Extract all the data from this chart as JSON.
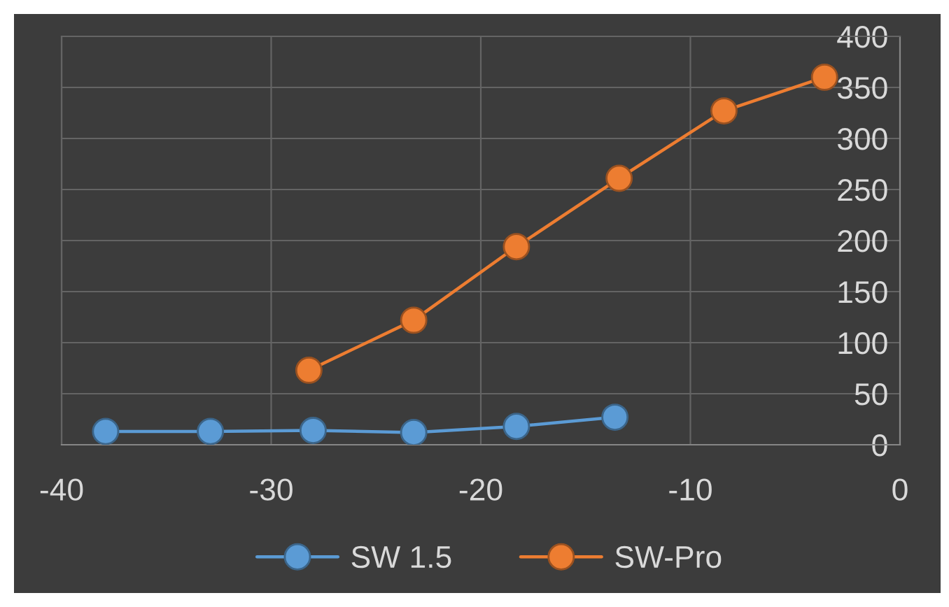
{
  "chart_data": {
    "type": "line",
    "series": [
      {
        "name": "SW 1.5",
        "color": "#5b9bd5",
        "x": [
          -37.9,
          -32.9,
          -28,
          -23.2,
          -18.3,
          -13.6
        ],
        "values": [
          13,
          13,
          14,
          12,
          18,
          27
        ]
      },
      {
        "name": "SW-Pro",
        "color": "#ed7d31",
        "x": [
          -28.2,
          -23.2,
          -18.3,
          -13.4,
          -8.4,
          -3.6
        ],
        "values": [
          73,
          122,
          194,
          261,
          327,
          360
        ]
      }
    ],
    "xlim": [
      -40,
      0
    ],
    "xticks": [
      -40,
      -30,
      -20,
      -10,
      0
    ],
    "ylim": [
      0,
      400
    ],
    "yticks": [
      0,
      50,
      100,
      150,
      200,
      250,
      300,
      350,
      400
    ],
    "grid": true,
    "legend": "bottom",
    "marker": "circle",
    "line_style": "solid"
  }
}
